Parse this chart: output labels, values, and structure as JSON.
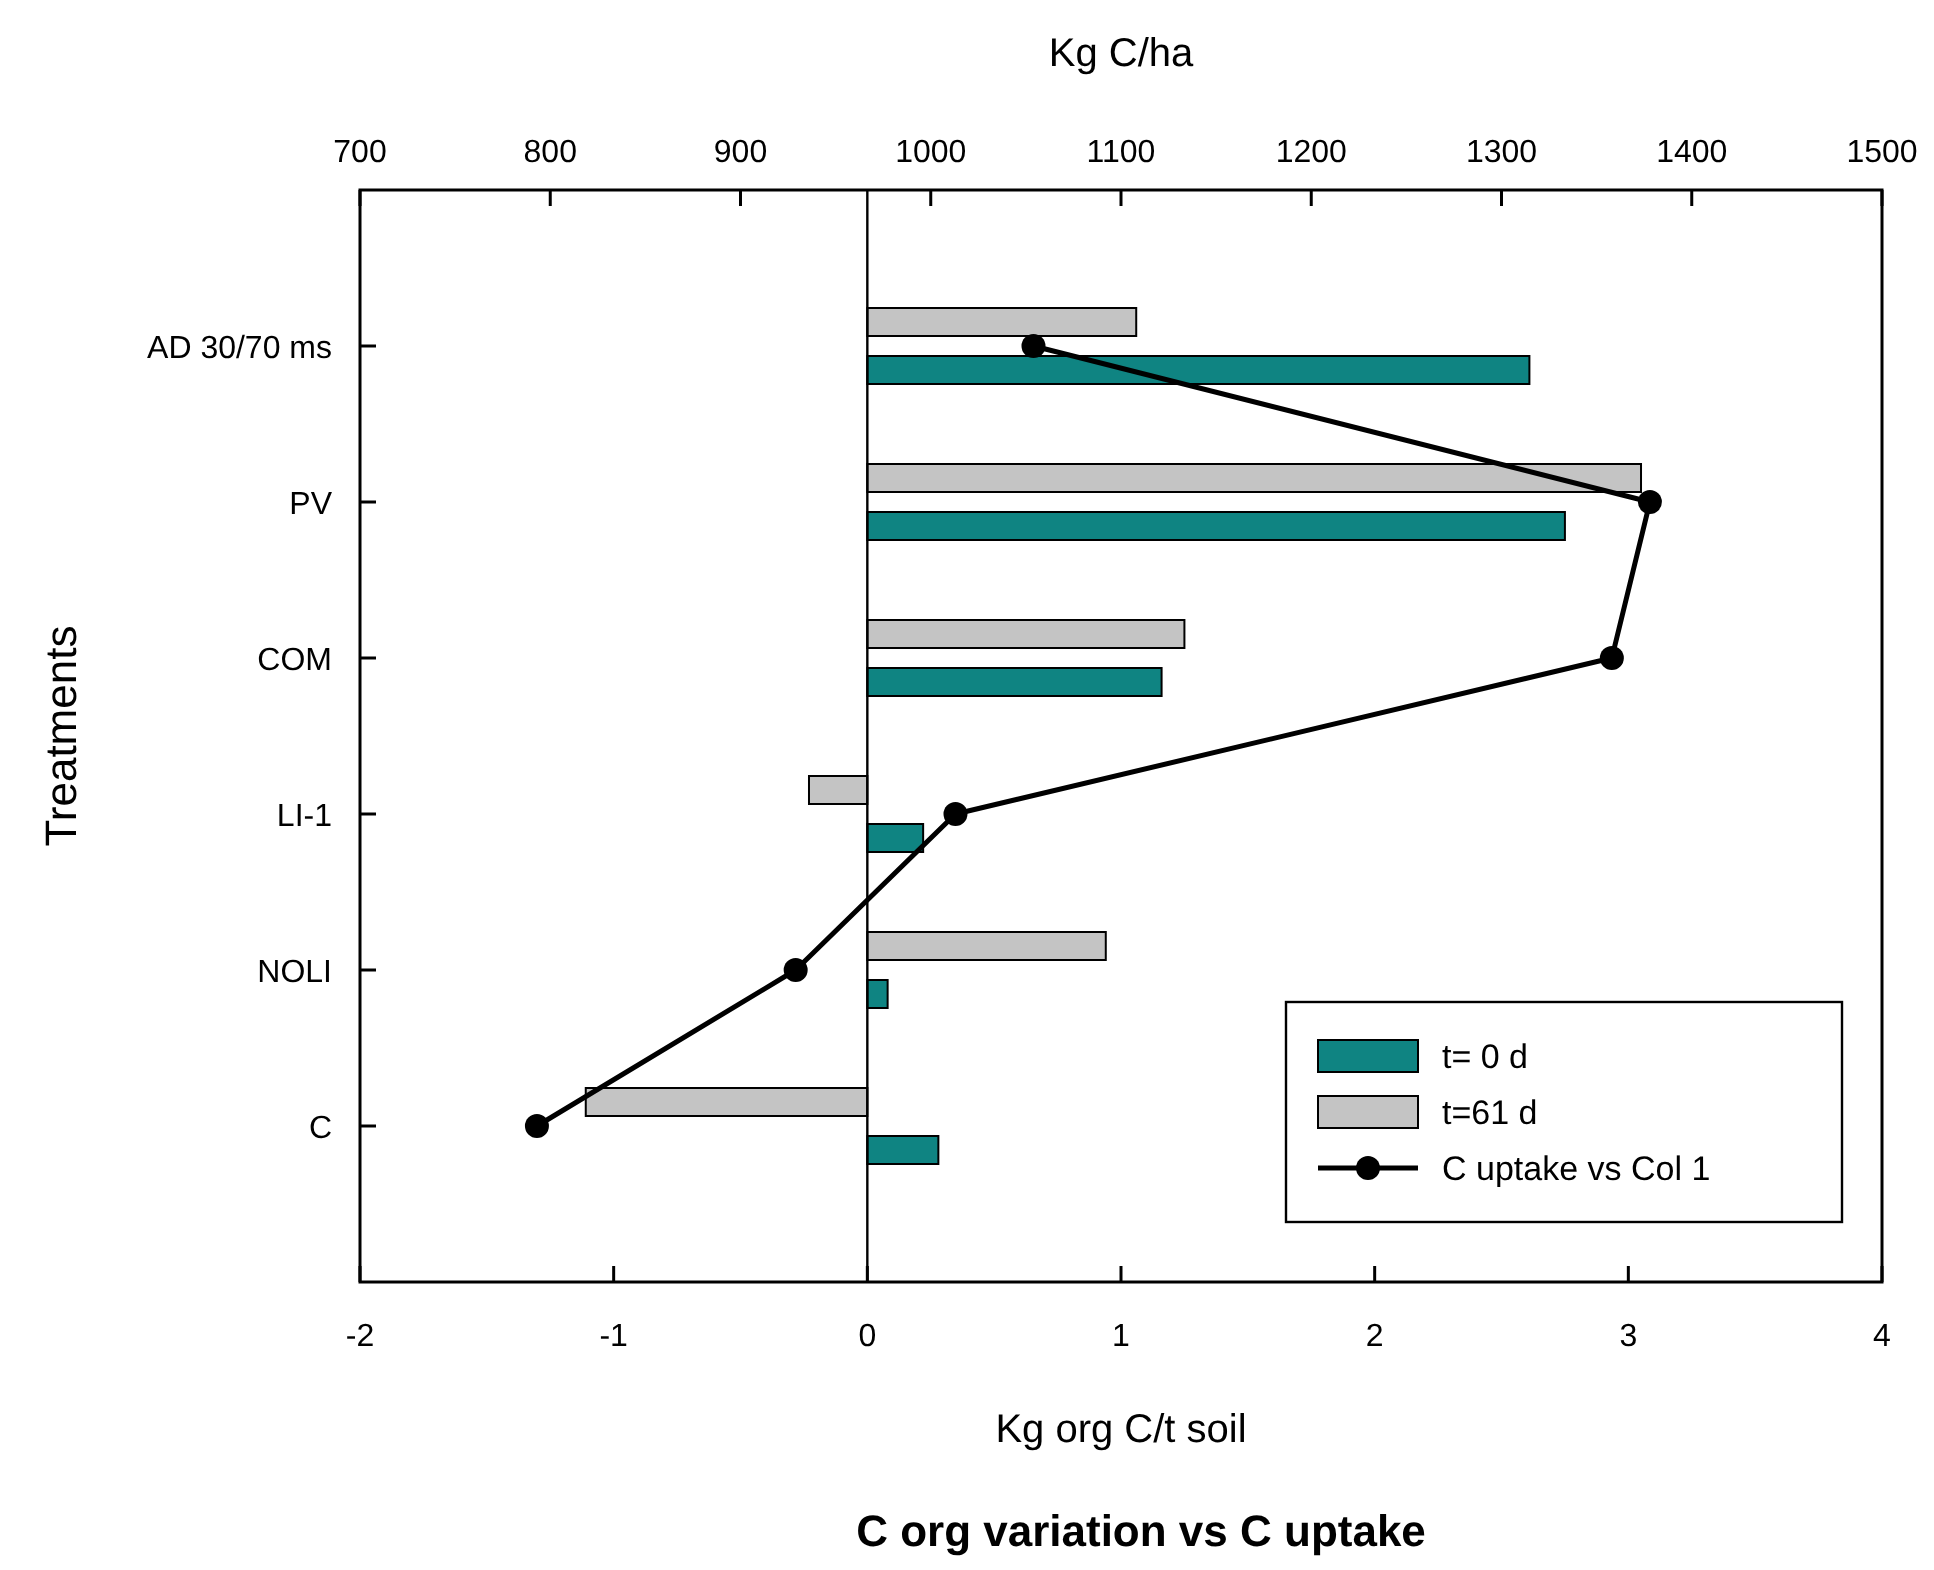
{
  "chart_data": {
    "type": "bar",
    "orientation": "horizontal",
    "title": "C org variation vs C uptake",
    "xlabel": "Kg org C/t soil",
    "x2label": "Kg C/ha",
    "ylabel": "Treatments",
    "categories": [
      "AD 30/70 ms",
      "PV",
      "COM",
      "LI-1",
      "NOLI",
      "C"
    ],
    "series": [
      {
        "name": "t= 0 d",
        "color": "#0f8482",
        "values": [
          2.61,
          2.75,
          1.16,
          0.22,
          0.08,
          0.28
        ]
      },
      {
        "name": "t=61 d",
        "color": "#c4c4c4",
        "values": [
          1.06,
          3.05,
          1.25,
          -0.23,
          0.94,
          -1.11
        ]
      },
      {
        "name": "C uptake vs Col 1",
        "type": "line",
        "axis": "x2",
        "color": "#000000",
        "marker": "circle",
        "line_style": "solid",
        "values": [
          1054,
          1378,
          1358,
          1013,
          929,
          793
        ]
      }
    ],
    "xlim": [
      -2,
      4
    ],
    "xticks": [
      -2,
      -1,
      0,
      1,
      2,
      3,
      4
    ],
    "x2lim": [
      700,
      1500
    ],
    "x2ticks": [
      700,
      800,
      900,
      1000,
      1100,
      1200,
      1300,
      1400,
      1500
    ],
    "ref_lines": [
      {
        "axis": "x",
        "value": 0,
        "color": "#000000"
      }
    ],
    "grid": false,
    "legend": "bottom right"
  }
}
